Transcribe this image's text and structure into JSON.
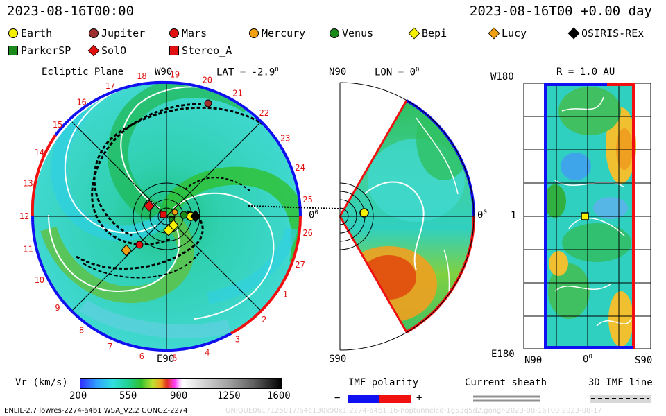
{
  "header": {
    "date_left": "2023-08-16T00:00",
    "date_right": "2023-08-16T00 +0.00 day"
  },
  "legend": {
    "items": [
      {
        "label": "Earth",
        "shape": "circle",
        "color": "#f5f000"
      },
      {
        "label": "Jupiter",
        "shape": "circle",
        "color": "#a03030"
      },
      {
        "label": "Mars",
        "shape": "circle",
        "color": "#e01010"
      },
      {
        "label": "Mercury",
        "shape": "circle",
        "color": "#f0a010"
      },
      {
        "label": "Venus",
        "shape": "circle",
        "color": "#1a8a1a"
      },
      {
        "label": "Bepi",
        "shape": "diamond",
        "color": "#f5f000"
      },
      {
        "label": "Lucy",
        "shape": "diamond",
        "color": "#f0a010"
      },
      {
        "label": "OSIRIS-REx",
        "shape": "diamond",
        "color": "#000000"
      },
      {
        "label": "ParkerSP",
        "shape": "square",
        "color": "#1a8a1a"
      },
      {
        "label": "SolO",
        "shape": "diamond",
        "color": "#e01010"
      },
      {
        "label": "Stereo_A",
        "shape": "square",
        "color": "#e01010"
      }
    ]
  },
  "panels": {
    "ecliptic": {
      "title": "Ecliptic Plane",
      "top_label": "W90",
      "lat_label": "LAT = -2.9",
      "deg_sup": "0",
      "right_label": "0",
      "bottom_label": "E90",
      "rotations": [
        "6",
        "7",
        "8",
        "9",
        "10",
        "11",
        "12",
        "13",
        "14",
        "15",
        "16",
        "17",
        "18",
        "19",
        "20",
        "21",
        "22",
        "23",
        "24",
        "25",
        "26",
        "27",
        "1",
        "2",
        "3",
        "4",
        "5"
      ]
    },
    "meridional": {
      "top_label": "N90",
      "lon_label": "LON = 0",
      "deg_sup": "0",
      "right_label": "0",
      "bottom_label": "S90"
    },
    "map": {
      "title": "R = 1.0 AU",
      "top_left": "W180",
      "mid_left": "1",
      "bottom_left": "E180",
      "x_left": "N90",
      "x_mid": "0",
      "x_right": "S90"
    }
  },
  "colorbar": {
    "label": "Vr (km/s)",
    "ticks": [
      "200",
      "550",
      "900",
      "1250",
      "1600"
    ]
  },
  "imf_polarity": {
    "label": "IMF polarity",
    "minus": "−",
    "plus": "+"
  },
  "current_sheath": {
    "label": "Current sheath"
  },
  "imf_line": {
    "label": "3D IMF line"
  },
  "footer": {
    "left": "ENLIL-2.7 lowres-2274-a4b1 WSA_V2.2 GONGZ-2274",
    "right": "UNIQUE0617125017/64e130x90x1.2274-a4b1.16-noptunnelcd-1g53q5d2.gongr-2023-08-16T00 2023-08-17"
  },
  "colors": {
    "red": "#f01010",
    "blue": "#1010f0",
    "accent": "#f5f000"
  }
}
